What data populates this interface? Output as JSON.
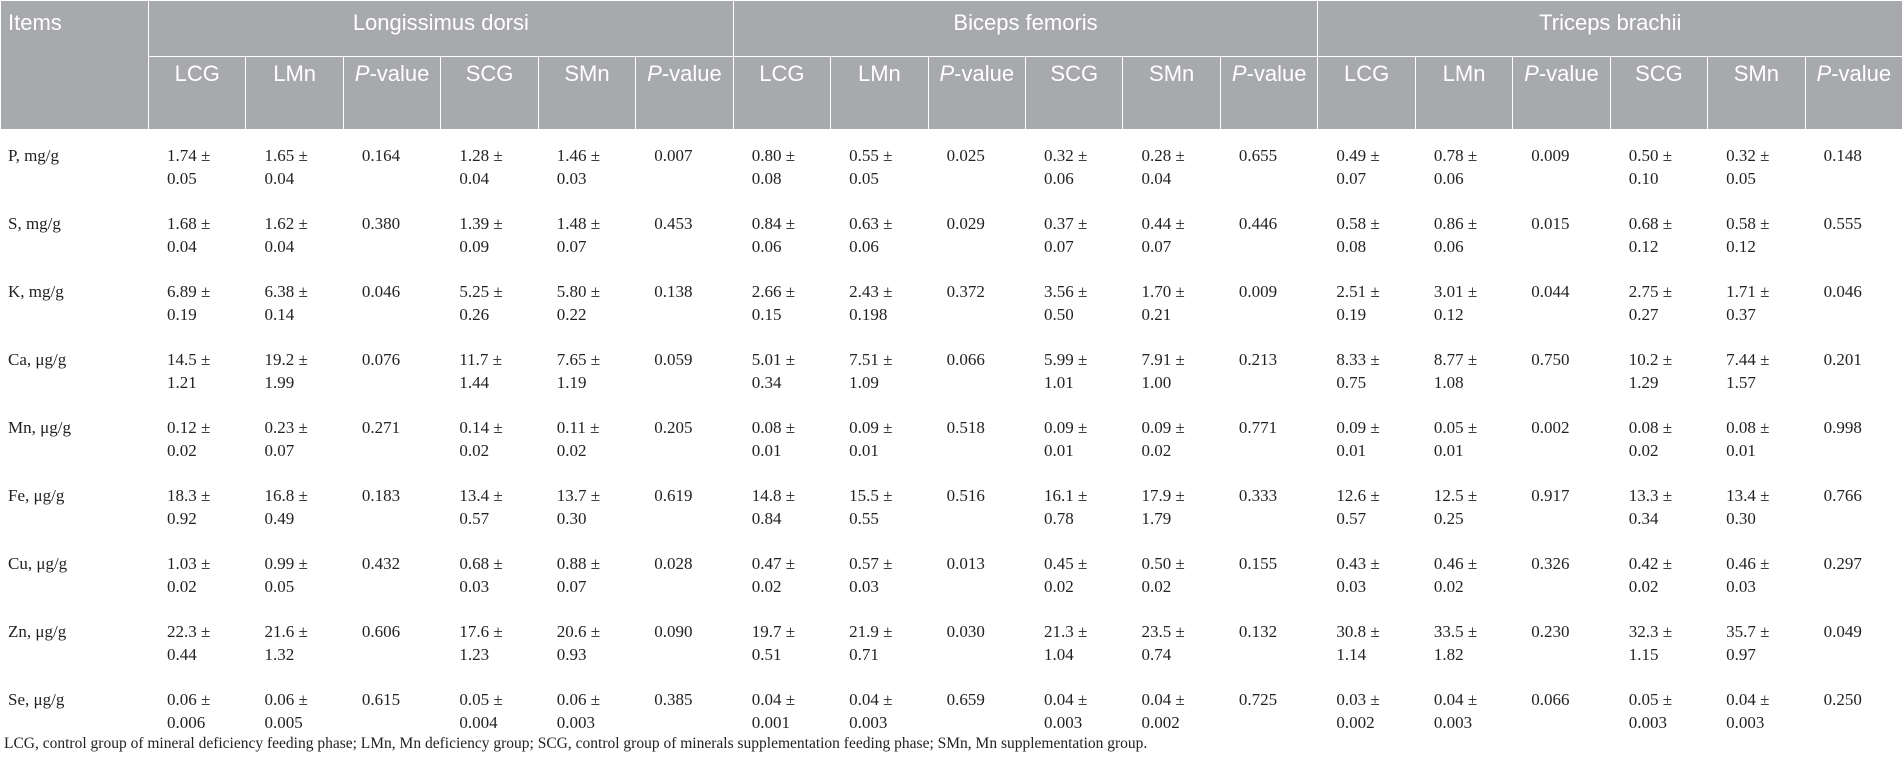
{
  "table": {
    "items_header": "Items",
    "groups": [
      "Longissimus dorsi",
      "Biceps femoris",
      "Triceps brachii"
    ],
    "subheaders": [
      {
        "label": "LCG"
      },
      {
        "label": "LMn"
      },
      {
        "label": "P-value",
        "italic_prefix": "P",
        "rest": "-value"
      },
      {
        "label": "SCG"
      },
      {
        "label": "SMn"
      },
      {
        "label": "P-value",
        "italic_prefix": "P",
        "rest": "-value"
      }
    ],
    "rows": [
      {
        "item": "P, mg/g",
        "cells": [
          "1.74 ± 0.05",
          "1.65 ± 0.04",
          "0.164",
          "1.28 ± 0.04",
          "1.46 ± 0.03",
          "0.007",
          "0.80 ± 0.08",
          "0.55 ± 0.05",
          "0.025",
          "0.32 ± 0.06",
          "0.28 ± 0.04",
          "0.655",
          "0.49 ± 0.07",
          "0.78 ± 0.06",
          "0.009",
          "0.50 ± 0.10",
          "0.32 ± 0.05",
          "0.148"
        ]
      },
      {
        "item": "S, mg/g",
        "cells": [
          "1.68 ± 0.04",
          "1.62 ± 0.04",
          "0.380",
          "1.39 ± 0.09",
          "1.48 ± 0.07",
          "0.453",
          "0.84 ± 0.06",
          "0.63 ± 0.06",
          "0.029",
          "0.37 ± 0.07",
          "0.44 ± 0.07",
          "0.446",
          "0.58 ± 0.08",
          "0.86 ± 0.06",
          "0.015",
          "0.68 ± 0.12",
          "0.58 ± 0.12",
          "0.555"
        ]
      },
      {
        "item": "K, mg/g",
        "cells": [
          "6.89 ± 0.19",
          "6.38 ± 0.14",
          "0.046",
          "5.25 ± 0.26",
          "5.80 ± 0.22",
          "0.138",
          "2.66 ± 0.15",
          "2.43 ± 0.198",
          "0.372",
          "3.56 ± 0.50",
          "1.70 ± 0.21",
          "0.009",
          "2.51 ± 0.19",
          "3.01 ± 0.12",
          "0.044",
          "2.75 ± 0.27",
          "1.71 ± 0.37",
          "0.046"
        ]
      },
      {
        "item": "Ca, μg/g",
        "cells": [
          "14.5 ± 1.21",
          "19.2 ± 1.99",
          "0.076",
          "11.7 ± 1.44",
          "7.65 ± 1.19",
          "0.059",
          "5.01 ± 0.34",
          "7.51 ± 1.09",
          "0.066",
          "5.99 ± 1.01",
          "7.91 ± 1.00",
          "0.213",
          "8.33 ± 0.75",
          "8.77 ± 1.08",
          "0.750",
          "10.2 ± 1.29",
          "7.44 ± 1.57",
          "0.201"
        ]
      },
      {
        "item": "Mn, μg/g",
        "cells": [
          "0.12 ± 0.02",
          "0.23 ± 0.07",
          "0.271",
          "0.14 ± 0.02",
          "0.11 ± 0.02",
          "0.205",
          "0.08 ± 0.01",
          "0.09 ± 0.01",
          "0.518",
          "0.09 ± 0.01",
          "0.09 ± 0.02",
          "0.771",
          "0.09 ± 0.01",
          "0.05 ± 0.01",
          "0.002",
          "0.08 ± 0.02",
          "0.08 ± 0.01",
          "0.998"
        ]
      },
      {
        "item": "Fe, μg/g",
        "cells": [
          "18.3 ± 0.92",
          "16.8 ± 0.49",
          "0.183",
          "13.4 ± 0.57",
          "13.7 ± 0.30",
          "0.619",
          "14.8 ± 0.84",
          "15.5 ± 0.55",
          "0.516",
          "16.1 ± 0.78",
          "17.9 ± 1.79",
          "0.333",
          "12.6 ± 0.57",
          "12.5 ± 0.25",
          "0.917",
          "13.3 ± 0.34",
          "13.4 ± 0.30",
          "0.766"
        ]
      },
      {
        "item": "Cu, μg/g",
        "cells": [
          "1.03 ± 0.02",
          "0.99 ± 0.05",
          "0.432",
          "0.68 ± 0.03",
          "0.88 ± 0.07",
          "0.028",
          "0.47 ± 0.02",
          "0.57 ± 0.03",
          "0.013",
          "0.45 ± 0.02",
          "0.50 ± 0.02",
          "0.155",
          "0.43 ± 0.03",
          "0.46 ± 0.02",
          "0.326",
          "0.42 ± 0.02",
          "0.46 ± 0.03",
          "0.297"
        ]
      },
      {
        "item": "Zn, μg/g",
        "cells": [
          "22.3 ± 0.44",
          "21.6 ± 1.32",
          "0.606",
          "17.6 ± 1.23",
          "20.6 ± 0.93",
          "0.090",
          "19.7 ± 0.51",
          "21.9 ± 0.71",
          "0.030",
          "21.3 ± 1.04",
          "23.5 ± 0.74",
          "0.132",
          "30.8 ± 1.14",
          "33.5 ± 1.82",
          "0.230",
          "32.3 ± 1.15",
          "35.7 ± 0.97",
          "0.049"
        ]
      },
      {
        "item": "Se, μg/g",
        "cells": [
          "0.06 ± 0.006",
          "0.06 ± 0.005",
          "0.615",
          "0.05 ± 0.004",
          "0.06 ± 0.003",
          "0.385",
          "0.04 ± 0.001",
          "0.04 ± 0.003",
          "0.659",
          "0.04 ± 0.003",
          "0.04 ± 0.002",
          "0.725",
          "0.03 ± 0.002",
          "0.04 ± 0.003",
          "0.066",
          "0.05 ± 0.003",
          "0.04 ± 0.003",
          "0.250"
        ]
      }
    ],
    "footnote": "LCG, control group of mineral deficiency feeding phase; LMn, Mn deficiency group; SCG, control group of minerals supplementation feeding phase; SMn, Mn supplementation group."
  },
  "colors": {
    "header_bg": "#a7a9ac",
    "header_text": "#ffffff",
    "grid": "#a7a9ac",
    "body_text": "#222222"
  }
}
